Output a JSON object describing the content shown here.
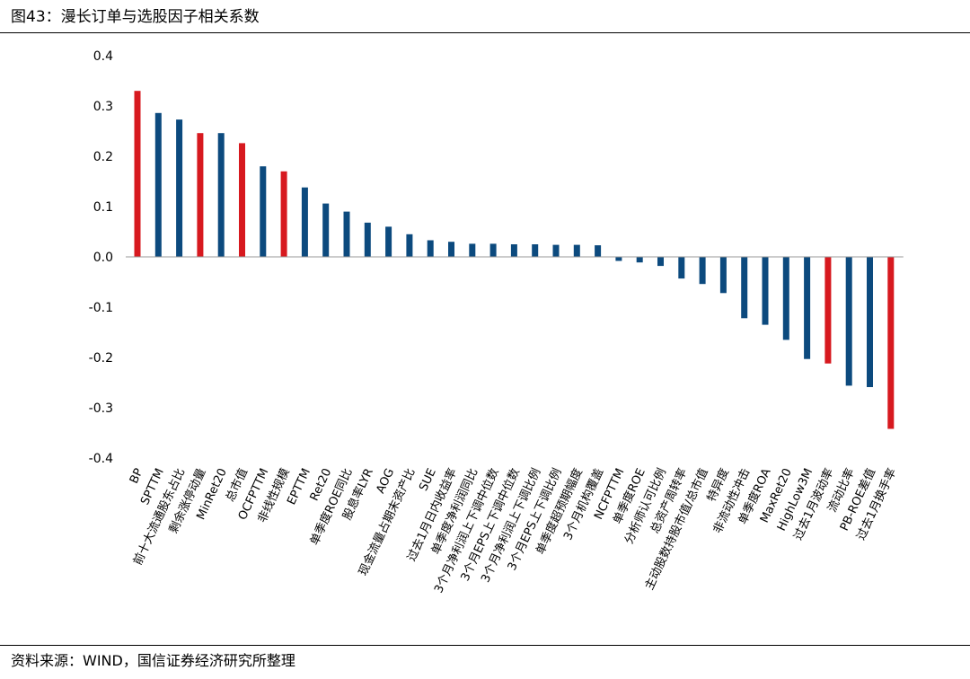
{
  "header": {
    "title": "图43：漫长订单与选股因子相关系数"
  },
  "footer": {
    "source": "资料来源：WIND，国信证券经济研究所整理"
  },
  "colors": {
    "highlight": "#d7191f",
    "normal": "#0c4a7e"
  },
  "chart_data": {
    "type": "bar",
    "title": "",
    "xlabel": "",
    "ylabel": "",
    "ylim": [
      -0.4,
      0.4
    ],
    "yticks": [
      "0.4",
      "0.3",
      "0.2",
      "0.1",
      "0.0",
      "-0.1",
      "-0.2",
      "-0.3",
      "-0.4"
    ],
    "grid": false,
    "categories": [
      "BP",
      "SPTTM",
      "前十大流通股东占比",
      "剩余涨停动量",
      "MinRet20",
      "总市值",
      "OCFPTTM",
      "非线性规模",
      "EPTTM",
      "Ret20",
      "单季度ROE同比",
      "股息率LYR",
      "AOG",
      "现金流量占期末资产比",
      "SUE",
      "过去1月日内收益率",
      "单季度净利润同比",
      "3个月净利润上下调中位数",
      "3个月EPS上下调中位数",
      "3个月净利润上下调比例",
      "3个月EPS上下调比例",
      "单季度超预期幅度",
      "3个月机构覆盖",
      "NCFPTTM",
      "单季度ROE",
      "分析师认可比例",
      "总资产周转率",
      "主动股数持股市值/总市值",
      "特异度",
      "非流动性冲击",
      "单季度ROA",
      "MaxRet20",
      "HighLow3M",
      "过去1月波动率",
      "流动比率",
      "PB-ROE差值",
      "过去1月换手率"
    ],
    "values": [
      0.33,
      0.286,
      0.273,
      0.246,
      0.246,
      0.226,
      0.18,
      0.17,
      0.138,
      0.106,
      0.09,
      0.068,
      0.06,
      0.045,
      0.033,
      0.03,
      0.026,
      0.026,
      0.025,
      0.025,
      0.024,
      0.024,
      0.023,
      -0.008,
      -0.011,
      -0.018,
      -0.043,
      -0.054,
      -0.072,
      -0.122,
      -0.135,
      -0.165,
      -0.203,
      -0.212,
      -0.256,
      -0.259,
      -0.342
    ],
    "highlight": [
      true,
      false,
      false,
      true,
      false,
      true,
      false,
      true,
      false,
      false,
      false,
      false,
      false,
      false,
      false,
      false,
      false,
      false,
      false,
      false,
      false,
      false,
      false,
      false,
      false,
      false,
      false,
      false,
      false,
      false,
      false,
      false,
      false,
      true,
      false,
      false,
      true
    ]
  }
}
